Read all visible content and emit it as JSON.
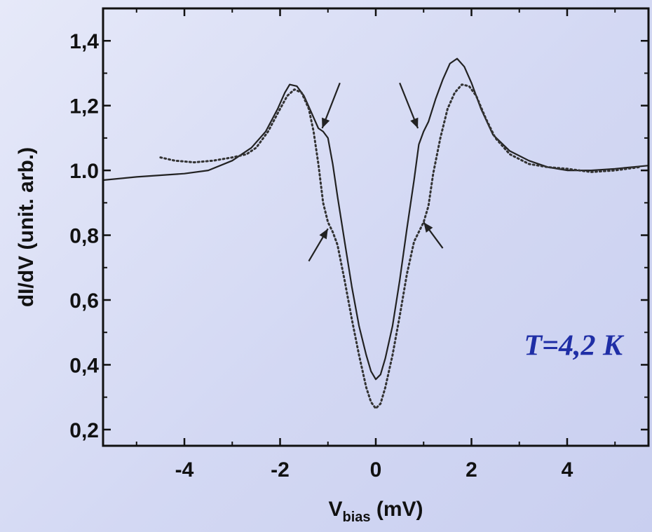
{
  "chart_data": {
    "type": "line",
    "xlabel_main": "V",
    "xlabel_sub": "bias",
    "xlabel_unit": " (mV)",
    "ylabel": "dI/dV (unit. arb.)",
    "xlim": [
      -5.7,
      5.7
    ],
    "ylim": [
      0.15,
      1.5
    ],
    "x_ticks": [
      -4,
      -2,
      0,
      2,
      4
    ],
    "x_tick_labels": [
      "-4",
      "-2",
      "0",
      "2",
      "4"
    ],
    "y_ticks": [
      0.2,
      0.4,
      0.6,
      0.8,
      1.0,
      1.2,
      1.4
    ],
    "y_tick_labels": [
      "0,2",
      "0,4",
      "0,6",
      "0,8",
      "1.0",
      "1,2",
      "1,4"
    ],
    "annotation": "T=4,2 K",
    "series": [
      {
        "style": "solid",
        "color": "#222222",
        "points": [
          [
            -5.7,
            0.97
          ],
          [
            -5.0,
            0.98
          ],
          [
            -4.0,
            0.99
          ],
          [
            -3.5,
            1.0
          ],
          [
            -3.0,
            1.03
          ],
          [
            -2.6,
            1.07
          ],
          [
            -2.3,
            1.12
          ],
          [
            -2.05,
            1.19
          ],
          [
            -1.9,
            1.24
          ],
          [
            -1.8,
            1.265
          ],
          [
            -1.65,
            1.26
          ],
          [
            -1.5,
            1.23
          ],
          [
            -1.35,
            1.18
          ],
          [
            -1.2,
            1.13
          ],
          [
            -1.1,
            1.12
          ],
          [
            -1.0,
            1.1
          ],
          [
            -0.9,
            1.02
          ],
          [
            -0.8,
            0.92
          ],
          [
            -0.65,
            0.78
          ],
          [
            -0.5,
            0.64
          ],
          [
            -0.35,
            0.52
          ],
          [
            -0.2,
            0.43
          ],
          [
            -0.1,
            0.38
          ],
          [
            0.0,
            0.355
          ],
          [
            0.1,
            0.37
          ],
          [
            0.2,
            0.42
          ],
          [
            0.35,
            0.52
          ],
          [
            0.5,
            0.66
          ],
          [
            0.65,
            0.82
          ],
          [
            0.8,
            0.97
          ],
          [
            0.9,
            1.08
          ],
          [
            1.0,
            1.12
          ],
          [
            1.1,
            1.15
          ],
          [
            1.25,
            1.22
          ],
          [
            1.4,
            1.28
          ],
          [
            1.55,
            1.33
          ],
          [
            1.7,
            1.345
          ],
          [
            1.85,
            1.32
          ],
          [
            2.0,
            1.27
          ],
          [
            2.2,
            1.19
          ],
          [
            2.45,
            1.11
          ],
          [
            2.8,
            1.06
          ],
          [
            3.2,
            1.03
          ],
          [
            3.6,
            1.01
          ],
          [
            4.0,
            1.0
          ],
          [
            4.5,
            1.0
          ],
          [
            5.0,
            1.005
          ],
          [
            5.7,
            1.015
          ]
        ]
      },
      {
        "style": "dotted",
        "color": "#333333",
        "points": [
          [
            -4.5,
            1.04
          ],
          [
            -4.2,
            1.03
          ],
          [
            -3.8,
            1.025
          ],
          [
            -3.4,
            1.03
          ],
          [
            -3.0,
            1.04
          ],
          [
            -2.7,
            1.05
          ],
          [
            -2.5,
            1.07
          ],
          [
            -2.25,
            1.12
          ],
          [
            -2.0,
            1.19
          ],
          [
            -1.85,
            1.23
          ],
          [
            -1.7,
            1.25
          ],
          [
            -1.55,
            1.24
          ],
          [
            -1.4,
            1.19
          ],
          [
            -1.3,
            1.12
          ],
          [
            -1.2,
            1.02
          ],
          [
            -1.1,
            0.9
          ],
          [
            -1.0,
            0.84
          ],
          [
            -0.9,
            0.81
          ],
          [
            -0.8,
            0.77
          ],
          [
            -0.65,
            0.66
          ],
          [
            -0.5,
            0.54
          ],
          [
            -0.35,
            0.43
          ],
          [
            -0.2,
            0.33
          ],
          [
            -0.1,
            0.285
          ],
          [
            0.0,
            0.265
          ],
          [
            0.1,
            0.28
          ],
          [
            0.2,
            0.33
          ],
          [
            0.35,
            0.43
          ],
          [
            0.5,
            0.55
          ],
          [
            0.65,
            0.68
          ],
          [
            0.8,
            0.78
          ],
          [
            0.9,
            0.81
          ],
          [
            1.0,
            0.84
          ],
          [
            1.1,
            0.89
          ],
          [
            1.2,
            0.99
          ],
          [
            1.35,
            1.1
          ],
          [
            1.5,
            1.19
          ],
          [
            1.65,
            1.24
          ],
          [
            1.8,
            1.265
          ],
          [
            1.95,
            1.26
          ],
          [
            2.1,
            1.23
          ],
          [
            2.3,
            1.16
          ],
          [
            2.5,
            1.1
          ],
          [
            2.8,
            1.05
          ],
          [
            3.2,
            1.02
          ],
          [
            3.6,
            1.01
          ],
          [
            4.0,
            1.005
          ],
          [
            4.5,
            0.995
          ],
          [
            5.0,
            1.0
          ],
          [
            5.5,
            1.01
          ]
        ]
      }
    ],
    "arrows": [
      {
        "from": [
          -0.75,
          1.27
        ],
        "to": [
          -1.12,
          1.13
        ]
      },
      {
        "from": [
          0.5,
          1.27
        ],
        "to": [
          0.88,
          1.13
        ]
      },
      {
        "from": [
          -1.4,
          0.72
        ],
        "to": [
          -1.0,
          0.82
        ]
      },
      {
        "from": [
          1.4,
          0.76
        ],
        "to": [
          1.0,
          0.84
        ]
      }
    ]
  }
}
